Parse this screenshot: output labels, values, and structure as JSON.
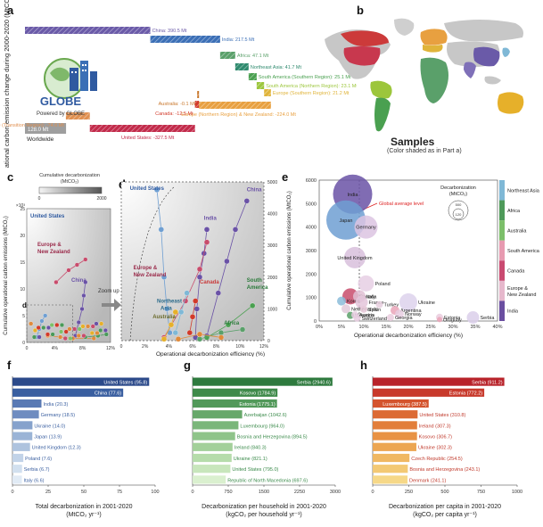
{
  "panels": {
    "a": "a",
    "b": "b",
    "c": "c",
    "d": "d",
    "d_inset": "d",
    "e": "e",
    "f": "f",
    "g": "g",
    "h": "h"
  },
  "logo": {
    "name": "GLOBE",
    "powered_by": "Powered by GLOBE"
  },
  "samples": {
    "title": "Samples",
    "subtitle": "(Color shaded as in Part a)"
  },
  "zoom_label": "Zoom up",
  "chart_data": [
    {
      "id": "a",
      "type": "bar",
      "title": "",
      "ylabel": "Operational carbon emission change during 2000-2020 (MtCO2)",
      "xlabel": "",
      "baseline": {
        "label": "Worldwide",
        "value": "128.0 Mt",
        "color": "#9e9e9e"
      },
      "categories": [
        "China",
        "India",
        "Africa",
        "Northeast Asia",
        "South America (Southern Region)",
        "South America (Northern Region)",
        "Europe (Southern Region)",
        "Europe (Northern Region) & New Zealand",
        "Australia",
        "Canada",
        "United States",
        "Europe (Transition Region)"
      ],
      "labels": [
        "China: 390.5 Mt",
        "India: 217.5 Mt",
        "Africa: 47.1 Mt",
        "Northeast Asia: 41.7 Mt",
        "South America (Southern Region): 25.1 Mt",
        "South America (Northern Region): 23.1 Mt",
        "Europe (Southern Region): 21.2 Mt",
        "Europe (Northern Region) & New Zealand: -224.0 Mt",
        "Australia: -0.1 Mt",
        "Canada: -12.5 Mt",
        "United States: -327.5 Mt",
        "Europe (Transition Region): -74.6 Mt"
      ],
      "values": [
        390.5,
        217.5,
        47.1,
        41.7,
        25.1,
        23.1,
        21.2,
        -224.0,
        -0.1,
        -12.5,
        -327.5,
        -74.6
      ],
      "colors": [
        "#6a5aa8",
        "#3b6fb6",
        "#5aa06a",
        "#2f8a6e",
        "#4aa050",
        "#9cc63c",
        "#e0b43a",
        "#e8a040",
        "#c8762a",
        "#d23a2a",
        "#c22a4a",
        "#e09050"
      ]
    },
    {
      "id": "c",
      "type": "scatter",
      "title": "",
      "xlabel": "Operational decarbonization efficiency (%)",
      "ylabel": "Cumulative operational carbon emissions (MtCO2)",
      "legend_title": "Cumulative decarbonization (MtCO2)",
      "legend_ticks": [
        "0",
        "2000"
      ],
      "ytick_top": "×10³",
      "xticks": [
        "0",
        "4%",
        "8%",
        "12%"
      ],
      "yticks": [
        "0",
        "5",
        "10",
        "15",
        "20",
        "25"
      ],
      "annotations": [
        "United States",
        "Europe & New Zealand",
        "China",
        "d"
      ]
    },
    {
      "id": "d",
      "type": "scatter",
      "title": "",
      "xlabel": "Operational decarbonization efficiency (%)",
      "xticks": [
        "0",
        "2%",
        "4%",
        "6%",
        "8%",
        "10%",
        "12%"
      ],
      "yticks": [
        "0",
        "1000",
        "2000",
        "3000",
        "4000",
        "5000"
      ],
      "annotations": [
        "United States",
        "India",
        "China",
        "Europe & New Zealand",
        "Northeast Asia",
        "Canada",
        "Australia",
        "South America",
        "Africa"
      ]
    },
    {
      "id": "e",
      "type": "scatter",
      "title": "",
      "xlabel": "Operational decarbonization efficiency (%)",
      "ylabel": "Cumulative operational carbon emissions (MtCO2)",
      "legend_title": "Decarbonization (MtCO2)",
      "legend_sizes": [
        "500",
        "120"
      ],
      "reference_line": {
        "label": "Global average level",
        "x": 9
      },
      "xticks": [
        "0%",
        "5%",
        "10%",
        "15%",
        "20%",
        "25%",
        "30%",
        "35%",
        "40%"
      ],
      "yticks": [
        "0",
        "1000",
        "2000",
        "3000",
        "4000",
        "5000",
        "6000"
      ],
      "xlim": [
        0,
        40
      ],
      "ylim": [
        0,
        6000
      ],
      "colorbar_labels": [
        "Northeast Asia",
        "Africa",
        "Australia",
        "South America",
        "Canada",
        "Europe & New Zealand",
        "India"
      ],
      "colorbar_colors": [
        "#7fb8d6",
        "#4f9a5a",
        "#7cbf6a",
        "#e79ab0",
        "#c94a70",
        "#e6b8cc",
        "#6a4ea0"
      ],
      "points": [
        {
          "name": "India",
          "x": 7.5,
          "y": 5400,
          "size": 22,
          "color": "#6a52a6"
        },
        {
          "name": "Japan",
          "x": 6,
          "y": 4300,
          "size": 22,
          "color": "#6f9fd2"
        },
        {
          "name": "Germany",
          "x": 10.5,
          "y": 4000,
          "size": 13,
          "color": "#dcc4e2"
        },
        {
          "name": "United Kingdom",
          "x": 8,
          "y": 2700,
          "size": 12,
          "color": "#d8c0dc"
        },
        {
          "name": "Poland",
          "x": 10.5,
          "y": 1600,
          "size": 9,
          "color": "#e6cfe4"
        },
        {
          "name": "Canada",
          "x": 7,
          "y": 1050,
          "size": 9,
          "color": "#c84c6c"
        },
        {
          "name": "Italy",
          "x": 9,
          "y": 1050,
          "size": 7,
          "color": "#e0c0d4"
        },
        {
          "name": "Korea",
          "x": 5,
          "y": 850,
          "size": 5,
          "color": "#8bbcd9"
        },
        {
          "name": "France",
          "x": 9.5,
          "y": 800,
          "size": 7,
          "color": "#e4c6da"
        },
        {
          "name": "Turkey",
          "x": 13.5,
          "y": 700,
          "size": 4,
          "color": "#e6cede"
        },
        {
          "name": "Ukraine",
          "x": 20,
          "y": 800,
          "size": 10,
          "color": "#ddd2ec"
        },
        {
          "name": "Netherlands",
          "x": 6,
          "y": 520,
          "size": 5,
          "color": "#e2cada"
        },
        {
          "name": "Spain",
          "x": 10,
          "y": 500,
          "size": 4,
          "color": "#e6c8d8"
        },
        {
          "name": "Argentina",
          "x": 17,
          "y": 450,
          "size": 5,
          "color": "#eaa4b8"
        },
        {
          "name": "Norway",
          "x": 18,
          "y": 300,
          "size": 5,
          "color": "#e6cce0"
        },
        {
          "name": "Morocco",
          "x": 7,
          "y": 240,
          "size": 4,
          "color": "#5aa068"
        },
        {
          "name": "Austria",
          "x": 8,
          "y": 260,
          "size": 4,
          "color": "#e6cce0"
        },
        {
          "name": "Switzerland",
          "x": 8.5,
          "y": 120,
          "size": 4,
          "color": "#e6cce0"
        },
        {
          "name": "Georgia",
          "x": 16,
          "y": 150,
          "size": 4,
          "color": "#eaccde"
        },
        {
          "name": "Estonia",
          "x": 27,
          "y": 160,
          "size": 4,
          "color": "#eaccde"
        },
        {
          "name": "Uruguay",
          "x": 27,
          "y": 60,
          "size": 3,
          "color": "#eaa4b8"
        },
        {
          "name": "Serbia",
          "x": 34.5,
          "y": 150,
          "size": 7,
          "color": "#dacfea"
        }
      ]
    },
    {
      "id": "f",
      "type": "bar",
      "title": "",
      "xlabel": "Total decarbonization in 2001-2020",
      "xlabel_unit": "(MtCO2 yr-1)",
      "xlim": [
        0,
        100
      ],
      "xticks": [
        "0",
        "25",
        "50",
        "75",
        "100"
      ],
      "categories": [
        "United States",
        "China",
        "India",
        "Germany",
        "Ukraine",
        "Japan",
        "United Kingdom",
        "Poland",
        "Serbia",
        "Italy"
      ],
      "values": [
        95.8,
        77.6,
        20.3,
        18.5,
        14.0,
        13.9,
        12.3,
        7.6,
        6.7,
        6.6
      ],
      "labels": [
        "United States (95.8)",
        "China (77.6)",
        "India (20.3)",
        "Germany (18.5)",
        "Ukraine (14.0)",
        "Japan (13.9)",
        "United Kingdom (12.3)",
        "Poland (7.6)",
        "Serbia (6.7)",
        "Italy (6.6)"
      ],
      "colors": [
        "#2c4a8a",
        "#3a5fa0",
        "#5a7ab4",
        "#6f8cc0",
        "#86a2cc",
        "#9bb4d6",
        "#aec3de",
        "#c2d3e8",
        "#d2e0ef",
        "#e1ebf5"
      ]
    },
    {
      "id": "g",
      "type": "bar",
      "title": "",
      "xlabel": "Decarbonization per household in 2001-2020",
      "xlabel_unit": "(kgCO2 per household yr-1)",
      "xlim": [
        0,
        3000
      ],
      "xticks": [
        "0",
        "750",
        "1500",
        "2250",
        "3000"
      ],
      "categories": [
        "Serbia",
        "Kosovo",
        "Estonia",
        "Azerbaijan",
        "Luxembourg",
        "Bosnia and Herzegovina",
        "Ireland",
        "Ukraine",
        "United States",
        "Republic of North Macedonia"
      ],
      "values": [
        2940.6,
        1784.9,
        1775.1,
        1042.6,
        964.0,
        894.5,
        840.3,
        821.1,
        795.0,
        697.6
      ],
      "labels": [
        "Serbia (2940.6)",
        "Kosovo (1784.9)",
        "Estonia (1775.1)",
        "Azerbaijan (1042.6)",
        "Luxembourg (964.0)",
        "Bosnia and Herzegovina (894.5)",
        "Ireland (840.3)",
        "Ukraine (821.1)",
        "United States (795.0)",
        "Republic of North Macedonia (697.6)"
      ],
      "colors": [
        "#2e7a3e",
        "#3f8a4a",
        "#52995a",
        "#67a86a",
        "#7ab67a",
        "#8fc48a",
        "#a3d09a",
        "#b6dcab",
        "#c8e6bc",
        "#daf0cf"
      ]
    },
    {
      "id": "h",
      "type": "bar",
      "title": "",
      "xlabel": "Decarbonization per capita in 2001-2020",
      "xlabel_unit": "(kgCO2 per capita yr-1)",
      "xlim": [
        0,
        1000
      ],
      "xticks": [
        "0",
        "250",
        "500",
        "750",
        "1000"
      ],
      "categories": [
        "Serbia",
        "Estonia",
        "Luxembourg",
        "United States",
        "Ireland",
        "Kosovo",
        "Ukraine",
        "Czech Republic",
        "Bosnia and Herzegovina",
        "Denmark"
      ],
      "values": [
        911.2,
        772.2,
        387.5,
        310.8,
        307.3,
        306.7,
        302.3,
        254.5,
        243.1,
        241.1
      ],
      "labels": [
        "Serbia (911.2)",
        "Estonia (772.2)",
        "Luxembourg (387.5)",
        "United States (310.8)",
        "Ireland (307.3)",
        "Kosovo (306.7)",
        "Ukraine (302.3)",
        "Czech Republic (254.5)",
        "Bosnia and Herzegovina (243.1)",
        "Denmark (241.1)"
      ],
      "colors": [
        "#b8232a",
        "#c83a2c",
        "#d4542e",
        "#dc6a34",
        "#e27e3a",
        "#e89244",
        "#eca652",
        "#f0b862",
        "#f3c974",
        "#f6d888"
      ]
    }
  ]
}
